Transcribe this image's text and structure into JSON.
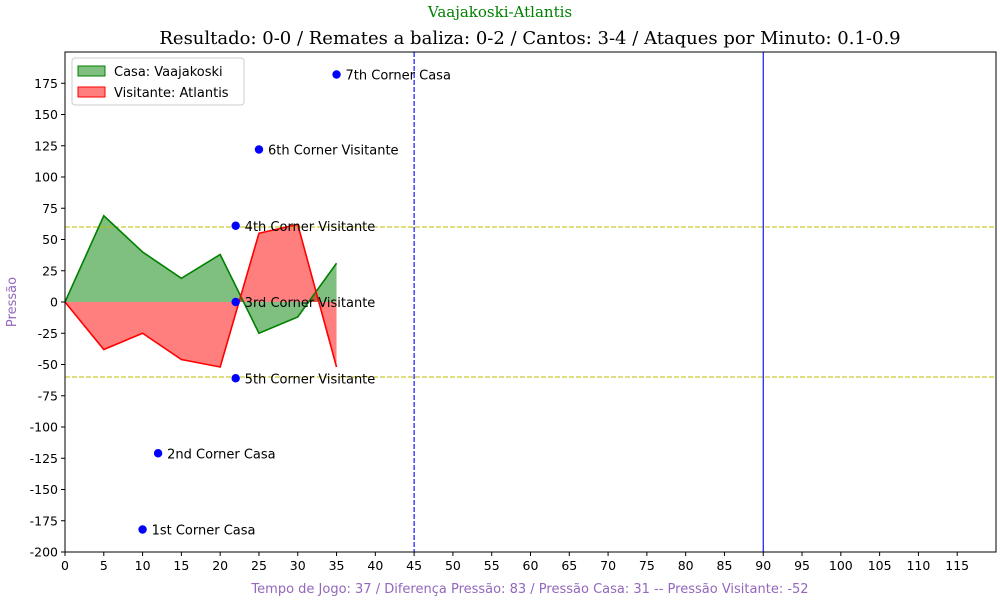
{
  "colors": {
    "suptitle": "#008000",
    "axis_label": "#9467bd",
    "home_fill": "#008000",
    "away_fill": "#ff0000",
    "corner_point": "#0000ff",
    "threshold_line": "#bfbf00",
    "halftime_line": "#0000ff"
  },
  "chart_data": {
    "type": "area",
    "suptitle": "Vaajakoski-Atlantis",
    "title": "Resultado: 0-0 / Remates a baliza: 0-2 / Cantos: 3-4 / Ataques por Minuto: 0.1-0.9",
    "xlabel": "Tempo de Jogo: 37 / Diferença Pressão: 83 / Pressão Casa: 31 -- Pressão Visitante: -52",
    "ylabel": "Pressão",
    "xlim": [
      0,
      120
    ],
    "ylim": [
      -200,
      200
    ],
    "x_ticks": [
      0,
      5,
      10,
      15,
      20,
      25,
      30,
      35,
      40,
      45,
      50,
      55,
      60,
      65,
      70,
      75,
      80,
      85,
      90,
      95,
      100,
      105,
      110,
      115
    ],
    "y_ticks": [
      -200,
      -175,
      -150,
      -125,
      -100,
      -75,
      -50,
      -25,
      0,
      25,
      50,
      75,
      100,
      125,
      150,
      175
    ],
    "legend": {
      "position": "upper-left",
      "entries": [
        {
          "label": "Casa: Vaajakoski",
          "series": "home"
        },
        {
          "label": "Visitante: Atlantis",
          "series": "away"
        }
      ]
    },
    "series": [
      {
        "name": "Casa: Vaajakoski",
        "key": "home",
        "x": [
          0,
          5,
          10,
          15,
          20,
          25,
          30,
          35
        ],
        "values": [
          0,
          69,
          40,
          19,
          38,
          -25,
          -12,
          31
        ]
      },
      {
        "name": "Visitante: Atlantis",
        "key": "away",
        "x": [
          0,
          5,
          10,
          15,
          20,
          25,
          30,
          35
        ],
        "values": [
          0,
          -38,
          -25,
          -46,
          -52,
          55,
          62,
          -52
        ]
      }
    ],
    "reference_lines": [
      {
        "orientation": "horizontal",
        "value": 60,
        "style": "dashed",
        "color_key": "threshold_line"
      },
      {
        "orientation": "horizontal",
        "value": -60,
        "style": "dashed",
        "color_key": "threshold_line"
      },
      {
        "orientation": "vertical",
        "value": 45,
        "style": "dashed",
        "color_key": "halftime_line"
      },
      {
        "orientation": "vertical",
        "value": 90,
        "style": "solid",
        "color_key": "halftime_line"
      }
    ],
    "annotations": [
      {
        "x": 10,
        "y": -182,
        "text": "1st Corner Casa"
      },
      {
        "x": 12,
        "y": -121,
        "text": "2nd Corner Casa"
      },
      {
        "x": 22,
        "y": 0,
        "text": "3rd Corner Visitante"
      },
      {
        "x": 22,
        "y": 61,
        "text": "4th Corner Visitante"
      },
      {
        "x": 22,
        "y": -61,
        "text": "5th Corner Visitante"
      },
      {
        "x": 25,
        "y": 122,
        "text": "6th Corner Visitante"
      },
      {
        "x": 35,
        "y": 182,
        "text": "7th Corner Casa"
      }
    ]
  }
}
